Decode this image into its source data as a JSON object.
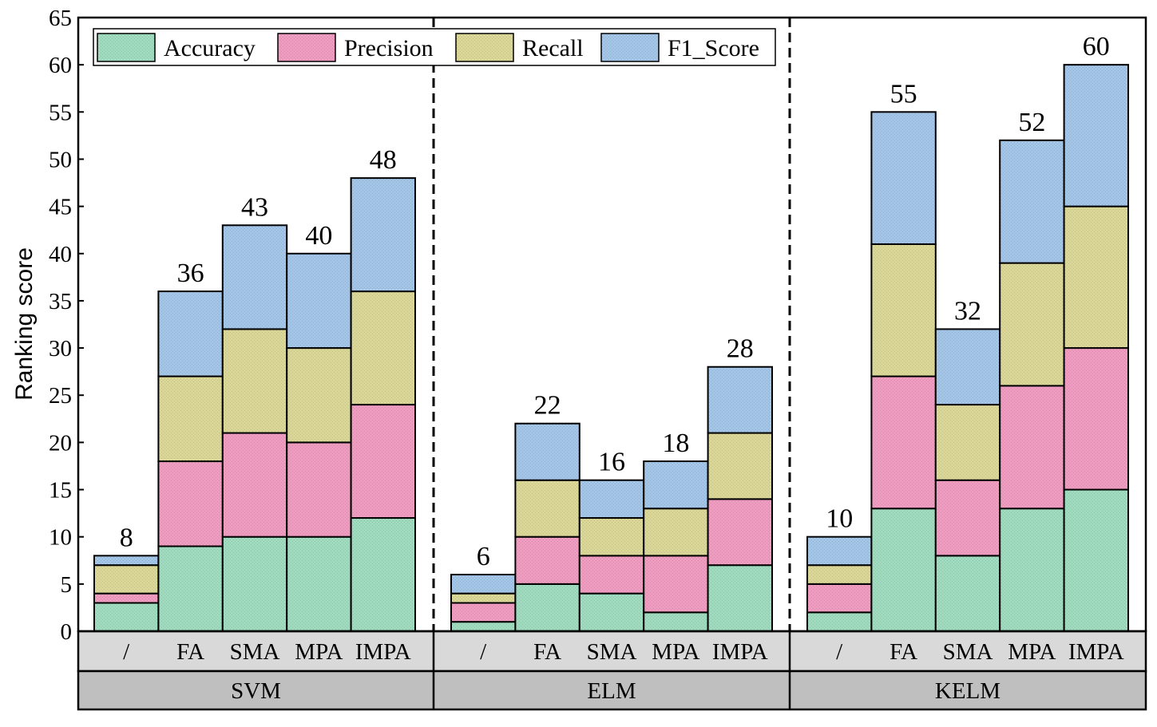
{
  "chart_data": {
    "type": "bar",
    "stacked": true,
    "ylabel": "Ranking score",
    "ylim": [
      0,
      65
    ],
    "yticks": [
      0,
      5,
      10,
      15,
      20,
      25,
      30,
      35,
      40,
      45,
      50,
      55,
      60,
      65
    ],
    "legend_position": "top-left",
    "series": [
      {
        "name": "Accuracy",
        "color": "#9fdcbf"
      },
      {
        "name": "Precision",
        "color": "#ef9cc0"
      },
      {
        "name": "Recall",
        "color": "#dbd796"
      },
      {
        "name": "F1_Score",
        "color": "#a3c6e8"
      }
    ],
    "groups": [
      {
        "name": "SVM",
        "bars": [
          {
            "label": "/",
            "values": [
              3,
              1,
              3,
              1
            ],
            "total": "8"
          },
          {
            "label": "FA",
            "values": [
              9,
              9,
              9,
              9
            ],
            "total": "36"
          },
          {
            "label": "SMA",
            "values": [
              10,
              11,
              11,
              11
            ],
            "total": "43"
          },
          {
            "label": "MPA",
            "values": [
              10,
              10,
              10,
              10
            ],
            "total": "40"
          },
          {
            "label": "IMPA",
            "values": [
              12,
              12,
              12,
              12
            ],
            "total": "48"
          }
        ]
      },
      {
        "name": "ELM",
        "bars": [
          {
            "label": "/",
            "values": [
              1,
              2,
              1,
              2
            ],
            "total": "6"
          },
          {
            "label": "FA",
            "values": [
              5,
              5,
              6,
              6
            ],
            "total": "22"
          },
          {
            "label": "SMA",
            "values": [
              4,
              4,
              4,
              4
            ],
            "total": "16"
          },
          {
            "label": "MPA",
            "values": [
              2,
              6,
              5,
              5
            ],
            "total": "18"
          },
          {
            "label": "IMPA",
            "values": [
              7,
              7,
              7,
              7
            ],
            "total": "28"
          }
        ]
      },
      {
        "name": "KELM",
        "bars": [
          {
            "label": "/",
            "values": [
              2,
              3,
              2,
              3
            ],
            "total": "10"
          },
          {
            "label": "FA",
            "values": [
              13,
              14,
              14,
              14
            ],
            "total": "55"
          },
          {
            "label": "SMA",
            "values": [
              8,
              8,
              8,
              8
            ],
            "total": "32"
          },
          {
            "label": "MPA",
            "values": [
              13,
              13,
              13,
              13
            ],
            "total": "52"
          },
          {
            "label": "IMPA",
            "values": [
              15,
              15,
              15,
              15
            ],
            "total": "60"
          }
        ]
      }
    ]
  }
}
